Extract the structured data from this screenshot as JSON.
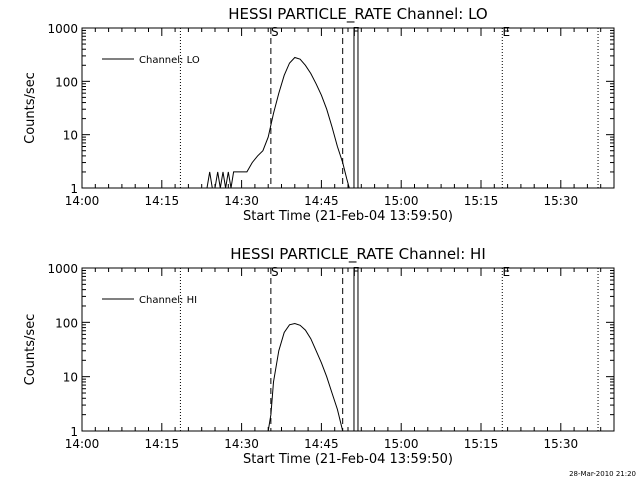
{
  "chart_data": [
    {
      "type": "line",
      "title": "HESSI PARTICLE_RATE Channel: LO",
      "xlabel": "Start Time (21-Feb-04 13:59:50)",
      "ylabel": "Counts/sec",
      "y_scale": "log",
      "xlim": [
        "14:00",
        "15:40"
      ],
      "ylim": [
        1,
        1000
      ],
      "x_ticks": [
        "14:00",
        "14:15",
        "14:30",
        "14:45",
        "15:00",
        "15:15",
        "15:30"
      ],
      "y_ticks": [
        "1",
        "10",
        "100",
        "1000"
      ],
      "legend": {
        "position": "top-left",
        "entries": [
          "Channel: LO"
        ]
      },
      "markers": [
        {
          "label": "S",
          "time": "14:35:30",
          "style": "dashed"
        },
        {
          "label": "",
          "time": "14:49:00",
          "style": "dashed"
        },
        {
          "label": "F",
          "time": "14:51:30",
          "style": "solid"
        },
        {
          "label": "E",
          "time": "15:19:00",
          "style": "dotted"
        },
        {
          "label": "",
          "time": "14:18:30",
          "style": "dotted"
        },
        {
          "label": "",
          "time": "15:37:00",
          "style": "dotted"
        }
      ],
      "series": [
        {
          "name": "Channel: LO",
          "points": [
            [
              "14:23:30",
              1
            ],
            [
              "14:24:00",
              2
            ],
            [
              "14:24:30",
              1
            ],
            [
              "14:25:00",
              1
            ],
            [
              "14:25:30",
              2
            ],
            [
              "14:26:00",
              1
            ],
            [
              "14:26:30",
              2
            ],
            [
              "14:27:00",
              1
            ],
            [
              "14:27:30",
              2
            ],
            [
              "14:28:00",
              1
            ],
            [
              "14:28:30",
              2
            ],
            [
              "14:30:00",
              2
            ],
            [
              "14:31:00",
              2
            ],
            [
              "14:32:00",
              3
            ],
            [
              "14:33:00",
              4
            ],
            [
              "14:34:00",
              5
            ],
            [
              "14:35:00",
              9
            ],
            [
              "14:36:00",
              25
            ],
            [
              "14:37:00",
              60
            ],
            [
              "14:38:00",
              130
            ],
            [
              "14:39:00",
              220
            ],
            [
              "14:40:00",
              280
            ],
            [
              "14:41:00",
              260
            ],
            [
              "14:42:00",
              200
            ],
            [
              "14:43:00",
              140
            ],
            [
              "14:44:00",
              90
            ],
            [
              "14:45:00",
              55
            ],
            [
              "14:46:00",
              30
            ],
            [
              "14:47:00",
              14
            ],
            [
              "14:48:00",
              6
            ],
            [
              "14:49:00",
              3
            ],
            [
              "14:49:45",
              1.5
            ],
            [
              "14:50:15",
              1
            ]
          ]
        }
      ]
    },
    {
      "type": "line",
      "title": "HESSI PARTICLE_RATE Channel: HI",
      "xlabel": "Start Time (21-Feb-04 13:59:50)",
      "ylabel": "Counts/sec",
      "y_scale": "log",
      "xlim": [
        "14:00",
        "15:40"
      ],
      "ylim": [
        1,
        1000
      ],
      "x_ticks": [
        "14:00",
        "14:15",
        "14:30",
        "14:45",
        "15:00",
        "15:15",
        "15:30"
      ],
      "y_ticks": [
        "1",
        "10",
        "100",
        "1000"
      ],
      "legend": {
        "position": "top-left",
        "entries": [
          "Channel: HI"
        ]
      },
      "markers": [
        {
          "label": "S",
          "time": "14:35:30",
          "style": "dashed"
        },
        {
          "label": "",
          "time": "14:49:00",
          "style": "dashed"
        },
        {
          "label": "F",
          "time": "14:51:30",
          "style": "solid"
        },
        {
          "label": "E",
          "time": "15:19:00",
          "style": "dotted"
        },
        {
          "label": "",
          "time": "14:18:30",
          "style": "dotted"
        },
        {
          "label": "",
          "time": "15:37:00",
          "style": "dotted"
        }
      ],
      "series": [
        {
          "name": "Channel: HI",
          "points": [
            [
              "14:35:00",
              1
            ],
            [
              "14:35:30",
              2
            ],
            [
              "14:36:00",
              8
            ],
            [
              "14:37:00",
              30
            ],
            [
              "14:38:00",
              65
            ],
            [
              "14:39:00",
              90
            ],
            [
              "14:40:00",
              95
            ],
            [
              "14:41:00",
              88
            ],
            [
              "14:42:00",
              72
            ],
            [
              "14:43:00",
              50
            ],
            [
              "14:44:00",
              30
            ],
            [
              "14:45:00",
              18
            ],
            [
              "14:46:00",
              10
            ],
            [
              "14:47:00",
              5
            ],
            [
              "14:48:00",
              2.5
            ],
            [
              "14:49:00",
              1
            ]
          ]
        }
      ]
    }
  ],
  "footer": {
    "timestamp": "28-Mar-2010 21:20"
  }
}
